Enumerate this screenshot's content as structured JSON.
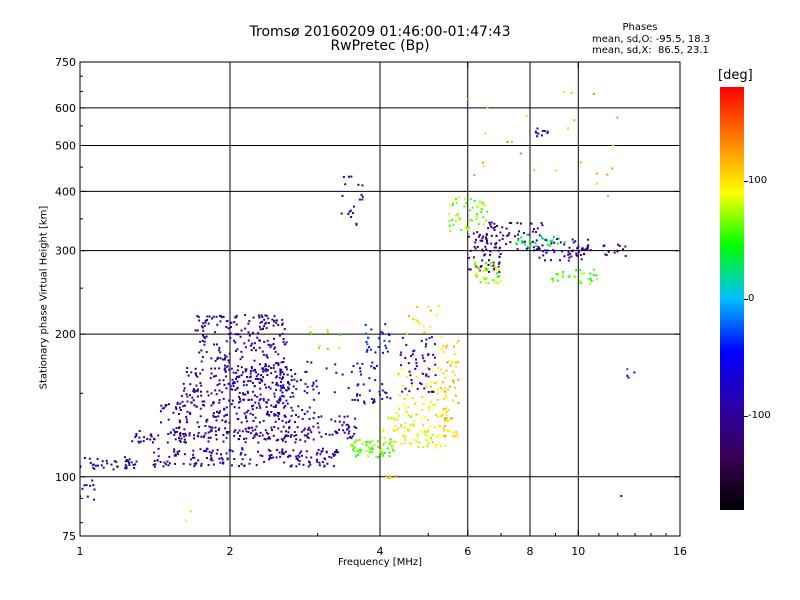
{
  "header": {
    "title": "Tromsø 20160209 01:46:00-01:47:43",
    "subtitle": "RwPretec (Bp)",
    "phases_title": "Phases",
    "phase_o": "mean, sd,O: -95.5, 18.3",
    "phase_x": "mean, sd,X:  86.5, 23.1"
  },
  "colorbar": {
    "unit_label": "[deg]",
    "ticks": [
      {
        "label": "100",
        "value": 100
      },
      {
        "label": "0",
        "value": 0
      },
      {
        "label": "-100",
        "value": -100
      }
    ],
    "range": [
      -180,
      180
    ],
    "colors": [
      "#000000",
      "#3a0056",
      "#2a00aa",
      "#0000ff",
      "#00bfff",
      "#00ff00",
      "#ffff00",
      "#ff8000",
      "#ff0000"
    ]
  },
  "chart_data": {
    "type": "scatter",
    "xlabel": "Frequency [MHz]",
    "ylabel": "Stationary phase Virtual Height [km]",
    "xscale": "log",
    "yscale": "log",
    "xlim": [
      1,
      16
    ],
    "ylim": [
      75,
      750
    ],
    "x_ticks": [
      {
        "value": 1,
        "label": "1"
      },
      {
        "value": 2,
        "label": "2"
      },
      {
        "value": 4,
        "label": "4"
      },
      {
        "value": 6,
        "label": "6"
      },
      {
        "value": 8,
        "label": "8"
      },
      {
        "value": 10,
        "label": "10"
      },
      {
        "value": 16,
        "label": "16"
      }
    ],
    "x_grid": [
      2,
      4,
      6,
      8,
      10
    ],
    "y_ticks": [
      {
        "value": 75,
        "label": "75"
      },
      {
        "value": 100,
        "label": "100"
      },
      {
        "value": 200,
        "label": "200"
      },
      {
        "value": 300,
        "label": "300"
      },
      {
        "value": 400,
        "label": "400"
      },
      {
        "value": 500,
        "label": "500"
      },
      {
        "value": 600,
        "label": "600"
      },
      {
        "value": 750,
        "label": "750"
      }
    ],
    "y_grid": [
      100,
      200,
      300,
      400,
      500,
      600
    ],
    "grid": true,
    "clusters": [
      {
        "freq": [
          1.0,
          1.3
        ],
        "height": [
          103,
          110
        ],
        "phase": -105,
        "n": 40
      },
      {
        "freq": [
          1.0,
          1.1
        ],
        "height": [
          88,
          100
        ],
        "phase": -95,
        "n": 10
      },
      {
        "freq": [
          1.25,
          1.45
        ],
        "height": [
          118,
          125
        ],
        "phase": -100,
        "n": 20
      },
      {
        "freq": [
          1.4,
          3.3
        ],
        "height": [
          105,
          115
        ],
        "phase": -100,
        "n": 170
      },
      {
        "freq": [
          1.5,
          3.0
        ],
        "height": [
          118,
          128
        ],
        "phase": -105,
        "n": 150
      },
      {
        "freq": [
          1.45,
          2.8
        ],
        "height": [
          130,
          145
        ],
        "phase": -100,
        "n": 130
      },
      {
        "freq": [
          1.6,
          2.7
        ],
        "height": [
          145,
          170
        ],
        "phase": -100,
        "n": 150
      },
      {
        "freq": [
          1.7,
          2.6
        ],
        "height": [
          165,
          220
        ],
        "phase": -100,
        "n": 200
      },
      {
        "freq": [
          1.9,
          3.0
        ],
        "height": [
          130,
          160
        ],
        "phase": -60,
        "n": 60
      },
      {
        "freq": [
          2.0,
          3.5
        ],
        "height": [
          150,
          175
        ],
        "phase": -70,
        "n": 40
      },
      {
        "freq": [
          2.8,
          3.5
        ],
        "height": [
          185,
          210
        ],
        "phase": 70,
        "n": 10
      },
      {
        "freq": [
          3.0,
          3.6
        ],
        "height": [
          120,
          135
        ],
        "phase": -95,
        "n": 40
      },
      {
        "freq": [
          3.5,
          4.2
        ],
        "height": [
          140,
          175
        ],
        "phase": -85,
        "n": 40
      },
      {
        "freq": [
          3.5,
          4.3
        ],
        "height": [
          110,
          120
        ],
        "phase": 60,
        "n": 60
      },
      {
        "freq": [
          3.7,
          4.2
        ],
        "height": [
          180,
          210
        ],
        "phase": -45,
        "n": 25
      },
      {
        "freq": [
          3.3,
          3.7
        ],
        "height": [
          340,
          430
        ],
        "phase": -110,
        "n": 20
      },
      {
        "freq": [
          4.0,
          5.5
        ],
        "height": [
          115,
          135
        ],
        "phase": 85,
        "n": 90
      },
      {
        "freq": [
          4.3,
          5.5
        ],
        "height": [
          135,
          170
        ],
        "phase": 100,
        "n": 50
      },
      {
        "freq": [
          4.4,
          5.2
        ],
        "height": [
          150,
          200
        ],
        "phase": -90,
        "n": 50
      },
      {
        "freq": [
          5.3,
          5.75
        ],
        "height": [
          120,
          200
        ],
        "phase": 110,
        "n": 60
      },
      {
        "freq": [
          4.5,
          5.3
        ],
        "height": [
          200,
          230
        ],
        "phase": 110,
        "n": 15
      },
      {
        "freq": [
          5.5,
          6.6
        ],
        "height": [
          330,
          390
        ],
        "phase": 70,
        "n": 50
      },
      {
        "freq": [
          6.0,
          7.0
        ],
        "height": [
          270,
          330
        ],
        "phase": -120,
        "n": 60
      },
      {
        "freq": [
          6.2,
          7.0
        ],
        "height": [
          255,
          285
        ],
        "phase": 70,
        "n": 40
      },
      {
        "freq": [
          6.5,
          8.5
        ],
        "height": [
          300,
          345
        ],
        "phase": -110,
        "n": 60
      },
      {
        "freq": [
          7.5,
          9.5
        ],
        "height": [
          305,
          325
        ],
        "phase": 30,
        "n": 30
      },
      {
        "freq": [
          8.3,
          10.5
        ],
        "height": [
          285,
          320
        ],
        "phase": -100,
        "n": 40
      },
      {
        "freq": [
          8.8,
          11.0
        ],
        "height": [
          255,
          275
        ],
        "phase": 60,
        "n": 30
      },
      {
        "freq": [
          8.2,
          8.7
        ],
        "height": [
          520,
          545
        ],
        "phase": -90,
        "n": 10
      },
      {
        "freq": [
          9.5,
          12.5
        ],
        "height": [
          290,
          310
        ],
        "phase": -120,
        "n": 30
      },
      {
        "freq": [
          6.0,
          12.0
        ],
        "height": [
          380,
          650
        ],
        "phase": 120,
        "n": 25
      },
      {
        "freq": [
          1.6,
          1.7
        ],
        "height": [
          80,
          85
        ],
        "phase": 95,
        "n": 2
      },
      {
        "freq": [
          12.0,
          13.0
        ],
        "height": [
          88,
          92
        ],
        "phase": -145,
        "n": 1
      },
      {
        "freq": [
          4.1,
          4.3
        ],
        "height": [
          98,
          103
        ],
        "phase": 110,
        "n": 5
      },
      {
        "freq": [
          12.5,
          13.0
        ],
        "height": [
          150,
          170
        ],
        "phase": -40,
        "n": 4
      }
    ]
  }
}
